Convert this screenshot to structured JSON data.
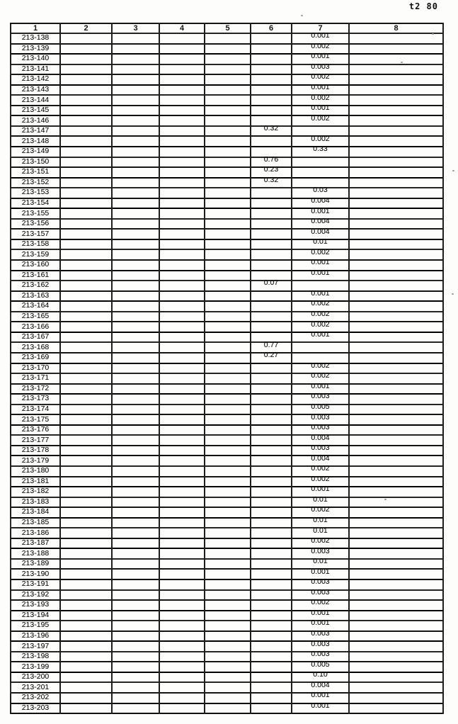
{
  "page": {
    "stamp": "t2 80"
  },
  "table": {
    "headers": [
      "1",
      "2",
      "3",
      "4",
      "5",
      "6",
      "7",
      "8"
    ],
    "rows": [
      {
        "id": "213-138",
        "c6": "",
        "c7": "0.001"
      },
      {
        "id": "213-139",
        "c6": "",
        "c7": "0.002"
      },
      {
        "id": "213-140",
        "c6": "",
        "c7": "0.001"
      },
      {
        "id": "213-141",
        "c6": "",
        "c7": "0.003"
      },
      {
        "id": "213-142",
        "c6": "",
        "c7": "0.002"
      },
      {
        "id": "213-143",
        "c6": "",
        "c7": "0.001"
      },
      {
        "id": "213-144",
        "c6": "",
        "c7": "0.002"
      },
      {
        "id": "213-145",
        "c6": "",
        "c7": "0.001"
      },
      {
        "id": "213-146",
        "c6": "",
        "c7": "0.002"
      },
      {
        "id": "213-147",
        "c6": "0.32",
        "c7": ""
      },
      {
        "id": "213-148",
        "c6": "",
        "c7": "0.002"
      },
      {
        "id": "213-149",
        "c6": "",
        "c7": "0.33"
      },
      {
        "id": "213-150",
        "c6": "0.76",
        "c7": ""
      },
      {
        "id": "213-151",
        "c6": "0.23",
        "c7": ""
      },
      {
        "id": "213-152",
        "c6": "0.32",
        "c7": ""
      },
      {
        "id": "213-153",
        "c6": "",
        "c7": "0.03"
      },
      {
        "id": "213-154",
        "c6": "",
        "c7": "0.004"
      },
      {
        "id": "213-155",
        "c6": "",
        "c7": "0.001"
      },
      {
        "id": "213-156",
        "c6": "",
        "c7": "0.004"
      },
      {
        "id": "213-157",
        "c6": "",
        "c7": "0.004"
      },
      {
        "id": "213-158",
        "c6": "",
        "c7": "0.01"
      },
      {
        "id": "213-159",
        "c6": "",
        "c7": "0.002"
      },
      {
        "id": "213-160",
        "c6": "",
        "c7": "0.001"
      },
      {
        "id": "213-161",
        "c6": "",
        "c7": "0.001"
      },
      {
        "id": "213-162",
        "c6": "0.07",
        "c7": ""
      },
      {
        "id": "213-163",
        "c6": "",
        "c7": "0.001"
      },
      {
        "id": "213-164",
        "c6": "",
        "c7": "0.002"
      },
      {
        "id": "213-165",
        "c6": "",
        "c7": "0.002"
      },
      {
        "id": "213-166",
        "c6": "",
        "c7": "0.002"
      },
      {
        "id": "213-167",
        "c6": "",
        "c7": "0.001"
      },
      {
        "id": "213-168",
        "c6": "0.77",
        "c7": ""
      },
      {
        "id": "213-169",
        "c6": "0.27",
        "c7": ""
      },
      {
        "id": "213-170",
        "c6": "",
        "c7": "0.002"
      },
      {
        "id": "213-171",
        "c6": "",
        "c7": "0.002"
      },
      {
        "id": "213-172",
        "c6": "",
        "c7": "0.001"
      },
      {
        "id": "213-173",
        "c6": "",
        "c7": "0.003"
      },
      {
        "id": "213-174",
        "c6": "",
        "c7": "0.005"
      },
      {
        "id": "213-175",
        "c6": "",
        "c7": "0.003"
      },
      {
        "id": "213-176",
        "c6": "",
        "c7": "0.003"
      },
      {
        "id": "213-177",
        "c6": "",
        "c7": "0.004"
      },
      {
        "id": "213-178",
        "c6": "",
        "c7": "0.003"
      },
      {
        "id": "213-179",
        "c6": "",
        "c7": "0.004"
      },
      {
        "id": "213-180",
        "c6": "",
        "c7": "0.002"
      },
      {
        "id": "213-181",
        "c6": "",
        "c7": "0.002"
      },
      {
        "id": "213-182",
        "c6": "",
        "c7": "0.001"
      },
      {
        "id": "213-183",
        "c6": "",
        "c7": "0.01"
      },
      {
        "id": "213-184",
        "c6": "",
        "c7": "0.002"
      },
      {
        "id": "213-185",
        "c6": "",
        "c7": "0.01"
      },
      {
        "id": "213-186",
        "c6": "",
        "c7": "0.01"
      },
      {
        "id": "213-187",
        "c6": "",
        "c7": "0.002"
      },
      {
        "id": "213-188",
        "c6": "",
        "c7": "0.003"
      },
      {
        "id": "213-189",
        "c6": "",
        "c7": "0.01"
      },
      {
        "id": "213-190",
        "c6": "",
        "c7": "0.001"
      },
      {
        "id": "213-191",
        "c6": "",
        "c7": "0.003"
      },
      {
        "id": "213-192",
        "c6": "",
        "c7": "0.003"
      },
      {
        "id": "213-193",
        "c6": "",
        "c7": "0.002"
      },
      {
        "id": "213-194",
        "c6": "",
        "c7": "0.001"
      },
      {
        "id": "213-195",
        "c6": "",
        "c7": "0.001"
      },
      {
        "id": "213-196",
        "c6": "",
        "c7": "0.003"
      },
      {
        "id": "213-197",
        "c6": "",
        "c7": "0.003"
      },
      {
        "id": "213-198",
        "c6": "",
        "c7": "0.003"
      },
      {
        "id": "213-199",
        "c6": "",
        "c7": "0.005"
      },
      {
        "id": "213-200",
        "c6": "",
        "c7": "0.10"
      },
      {
        "id": "213-201",
        "c6": "",
        "c7": "0.004"
      },
      {
        "id": "213-202",
        "c6": "",
        "c7": "0.001"
      },
      {
        "id": "213-203",
        "c6": "",
        "c7": "0.001"
      }
    ]
  }
}
